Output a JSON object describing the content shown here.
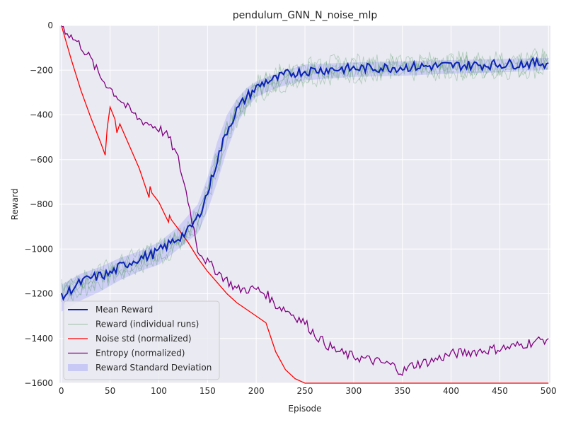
{
  "chart_data": {
    "type": "line",
    "title": "pendulum_GNN_N_noise_mlp",
    "xlabel": "Episode",
    "ylabel": "Reward",
    "xlim": [
      -2,
      502
    ],
    "ylim": [
      -1600,
      0
    ],
    "xticks": [
      0,
      50,
      100,
      150,
      200,
      250,
      300,
      350,
      400,
      450,
      500
    ],
    "yticks": [
      0,
      -200,
      -400,
      -600,
      -800,
      -1000,
      -1200,
      -1400,
      -1600
    ],
    "grid": true,
    "legend_position": "lower-left",
    "colors": {
      "background": "#eaeaf2",
      "grid": "#ffffff",
      "mean_reward": "#0b22b4",
      "runs": "#3a8a4a",
      "noise": "#ff0000",
      "entropy": "#800080",
      "std_band": "#7f7fff"
    },
    "series": [
      {
        "name": "Mean Reward",
        "key": "mean_reward",
        "style": "line",
        "x": [
          0,
          10,
          20,
          30,
          40,
          50,
          60,
          70,
          80,
          90,
          100,
          110,
          120,
          130,
          140,
          150,
          160,
          170,
          180,
          190,
          200,
          210,
          220,
          230,
          240,
          250,
          260,
          270,
          280,
          300,
          320,
          340,
          360,
          380,
          400,
          420,
          440,
          460,
          480,
          500
        ],
        "values": [
          -1220,
          -1180,
          -1150,
          -1130,
          -1120,
          -1110,
          -1080,
          -1060,
          -1040,
          -1030,
          -1010,
          -980,
          -950,
          -920,
          -860,
          -750,
          -600,
          -470,
          -380,
          -320,
          -280,
          -250,
          -240,
          -220,
          -210,
          -205,
          -200,
          -198,
          -195,
          -193,
          -190,
          -188,
          -185,
          -182,
          -180,
          -178,
          -175,
          -172,
          -170,
          -168
        ]
      },
      {
        "name": "Reward (individual runs)",
        "key": "runs",
        "style": "thin-lines",
        "x": [
          0,
          20,
          40,
          60,
          80,
          100,
          120,
          140,
          150,
          160,
          170,
          180,
          190,
          200,
          220,
          240,
          260,
          280,
          300,
          320,
          340,
          360,
          380,
          400,
          420,
          440,
          460,
          480,
          500
        ],
        "values": [
          -1200,
          -1160,
          -1120,
          -1090,
          -1050,
          -1020,
          -960,
          -880,
          -760,
          -610,
          -480,
          -390,
          -330,
          -285,
          -245,
          -215,
          -205,
          -198,
          -195,
          -192,
          -190,
          -186,
          -184,
          -182,
          -180,
          -178,
          -175,
          -172,
          -170
        ]
      },
      {
        "name": "Noise std (normalized)",
        "key": "noise",
        "style": "line",
        "x": [
          0,
          10,
          20,
          30,
          40,
          45,
          47,
          50,
          55,
          57,
          60,
          70,
          80,
          90,
          91,
          93,
          100,
          110,
          111,
          113,
          120,
          130,
          140,
          150,
          160,
          170,
          180,
          190,
          200,
          210,
          220,
          230,
          240,
          250,
          260,
          300,
          350,
          400,
          450,
          500
        ],
        "values": [
          0,
          -150,
          -290,
          -410,
          -520,
          -580,
          -460,
          -365,
          -420,
          -480,
          -440,
          -540,
          -640,
          -770,
          -720,
          -750,
          -790,
          -880,
          -850,
          -870,
          -910,
          -970,
          -1040,
          -1100,
          -1150,
          -1200,
          -1240,
          -1270,
          -1300,
          -1330,
          -1460,
          -1540,
          -1580,
          -1600,
          -1600,
          -1600,
          -1600,
          -1600,
          -1600,
          -1600
        ]
      },
      {
        "name": "Entropy (normalized)",
        "key": "entropy",
        "style": "line",
        "x": [
          0,
          10,
          20,
          30,
          40,
          50,
          60,
          70,
          80,
          90,
          100,
          110,
          120,
          130,
          140,
          150,
          160,
          170,
          180,
          190,
          200,
          210,
          220,
          230,
          240,
          250,
          260,
          270,
          280,
          290,
          300,
          320,
          340,
          350,
          360,
          380,
          400,
          420,
          440,
          460,
          480,
          500
        ],
        "values": [
          0,
          -50,
          -90,
          -150,
          -230,
          -280,
          -330,
          -380,
          -420,
          -440,
          -460,
          -500,
          -600,
          -780,
          -1000,
          -1060,
          -1100,
          -1140,
          -1180,
          -1180,
          -1180,
          -1200,
          -1250,
          -1270,
          -1300,
          -1330,
          -1380,
          -1420,
          -1450,
          -1470,
          -1480,
          -1500,
          -1520,
          -1550,
          -1520,
          -1500,
          -1470,
          -1460,
          -1450,
          -1440,
          -1420,
          -1400
        ]
      },
      {
        "name": "Reward Standard Deviation",
        "key": "std_band",
        "style": "band",
        "x": [
          0,
          20,
          40,
          60,
          80,
          100,
          120,
          140,
          150,
          160,
          170,
          180,
          190,
          200,
          220,
          250,
          300,
          350,
          400,
          450,
          500
        ],
        "lower": [
          -1280,
          -1230,
          -1190,
          -1140,
          -1100,
          -1070,
          -1000,
          -930,
          -830,
          -700,
          -560,
          -440,
          -370,
          -320,
          -280,
          -245,
          -230,
          -225,
          -215,
          -210,
          -200
        ],
        "upper": [
          -1160,
          -1110,
          -1080,
          -1040,
          -1010,
          -970,
          -900,
          -800,
          -680,
          -520,
          -400,
          -330,
          -280,
          -250,
          -215,
          -175,
          -165,
          -160,
          -155,
          -150,
          -145
        ]
      }
    ]
  }
}
